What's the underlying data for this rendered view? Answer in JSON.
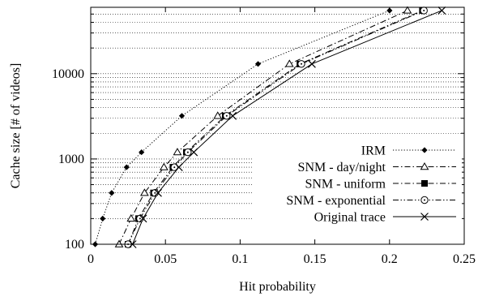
{
  "chart_data": {
    "type": "line",
    "xlabel": "Hit probability",
    "ylabel": "Cache size [# of videos]",
    "xlim": [
      0,
      0.25
    ],
    "ylim": [
      100,
      60000
    ],
    "yscale": "log",
    "grid": "horizontal dotted (major and minor)",
    "legend_position": "bottom-right",
    "x_ticks": [
      0,
      0.05,
      0.1,
      0.15,
      0.2,
      0.25
    ],
    "x_tick_labels": [
      "0",
      "0.05",
      "0.1",
      "0.15",
      "0.2",
      "0.25"
    ],
    "y_ticks": [
      100,
      1000,
      10000
    ],
    "y_tick_labels": [
      "100",
      "1000",
      "10000"
    ],
    "series": [
      {
        "name": "IRM",
        "marker": "diamond",
        "line_style": "dotted",
        "points": [
          [
            0.003,
            100
          ],
          [
            0.008,
            200
          ],
          [
            0.014,
            400
          ],
          [
            0.024,
            800
          ],
          [
            0.034,
            1200
          ],
          [
            0.061,
            3200
          ],
          [
            0.112,
            13000
          ],
          [
            0.2,
            55000
          ]
        ]
      },
      {
        "name": "SNM - day/night",
        "marker": "triangle",
        "line_style": "dash-dot",
        "points": [
          [
            0.019,
            100
          ],
          [
            0.027,
            200
          ],
          [
            0.036,
            400
          ],
          [
            0.049,
            800
          ],
          [
            0.058,
            1200
          ],
          [
            0.085,
            3200
          ],
          [
            0.133,
            13000
          ],
          [
            0.212,
            55000
          ]
        ]
      },
      {
        "name": "SNM - uniform",
        "marker": "filled-square",
        "line_style": "dash-dot",
        "points": [
          [
            0.025,
            100
          ],
          [
            0.032,
            200
          ],
          [
            0.042,
            400
          ],
          [
            0.055,
            800
          ],
          [
            0.064,
            1200
          ],
          [
            0.09,
            3200
          ],
          [
            0.14,
            13000
          ],
          [
            0.222,
            55000
          ]
        ]
      },
      {
        "name": "SNM - exponential",
        "marker": "circle-dot",
        "line_style": "dash-dot-dot",
        "points": [
          [
            0.025,
            100
          ],
          [
            0.033,
            200
          ],
          [
            0.043,
            400
          ],
          [
            0.056,
            800
          ],
          [
            0.065,
            1200
          ],
          [
            0.091,
            3200
          ],
          [
            0.141,
            13000
          ],
          [
            0.223,
            55000
          ]
        ]
      },
      {
        "name": "Original trace",
        "marker": "x",
        "line_style": "solid",
        "points": [
          [
            0.028,
            100
          ],
          [
            0.035,
            200
          ],
          [
            0.045,
            400
          ],
          [
            0.059,
            800
          ],
          [
            0.069,
            1200
          ],
          [
            0.095,
            3200
          ],
          [
            0.148,
            13000
          ],
          [
            0.235,
            55000
          ]
        ]
      }
    ]
  }
}
